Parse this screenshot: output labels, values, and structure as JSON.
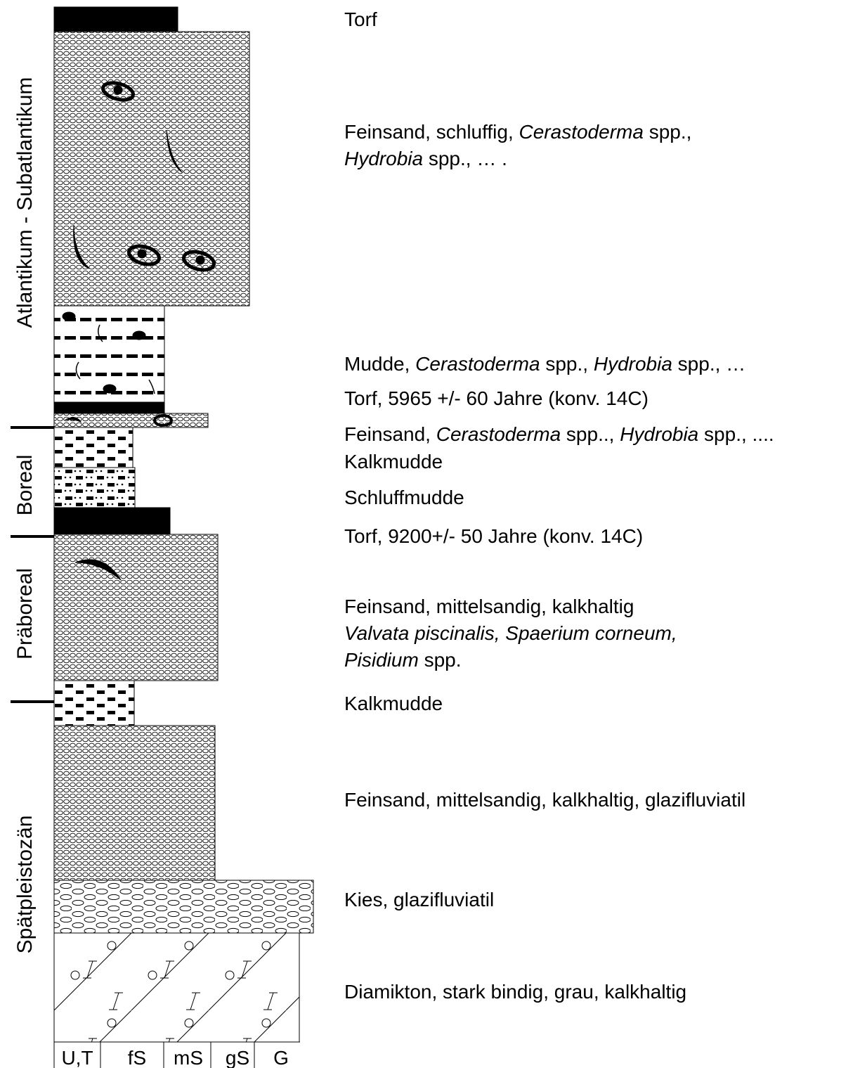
{
  "periods": [
    "Atlantikum - Subatlantikum",
    "Boreal",
    "Präboreal",
    "Spätpleistozän"
  ],
  "layers": [
    {
      "description": [
        [
          {
            "text": "Torf"
          }
        ]
      ]
    },
    {
      "description": [
        [
          {
            "text": "Feinsand, schluffig, "
          },
          {
            "text": "Cerastoderma",
            "italic": true
          },
          {
            "text": " spp.,"
          }
        ],
        [
          {
            "text": "Hydrobia",
            "italic": true
          },
          {
            "text": " spp., … ."
          }
        ]
      ]
    },
    {
      "description": [
        [
          {
            "text": "Mudde, "
          },
          {
            "text": "Cerastoderma",
            "italic": true
          },
          {
            "text": " spp., "
          },
          {
            "text": "Hydrobia",
            "italic": true
          },
          {
            "text": " spp., …"
          }
        ]
      ]
    },
    {
      "description": [
        [
          {
            "text": "Torf, 5965 +/- 60 Jahre (konv. 14C)"
          }
        ]
      ]
    },
    {
      "description": [
        [
          {
            "text": "Feinsand, "
          },
          {
            "text": "Cerastoderma",
            "italic": true
          },
          {
            "text": " spp.., "
          },
          {
            "text": "Hydrobia",
            "italic": true
          },
          {
            "text": " spp., ...."
          }
        ]
      ]
    },
    {
      "description": [
        [
          {
            "text": "Kalkmudde"
          }
        ]
      ]
    },
    {
      "description": [
        [
          {
            "text": "Schluffmudde"
          }
        ]
      ]
    },
    {
      "description": [
        [
          {
            "text": "Torf, 9200+/- 50 Jahre (konv. 14C)"
          }
        ]
      ]
    },
    {
      "description": [
        [
          {
            "text": "Feinsand, mittelsandig, kalkhaltig"
          }
        ],
        [
          {
            "text": "Valvata piscinalis, Spaerium corneum,",
            "italic": true
          }
        ],
        [
          {
            "text": "Pisidium",
            "italic": true
          },
          {
            "text": " spp."
          }
        ]
      ]
    },
    {
      "description": [
        [
          {
            "text": "Kalkmudde"
          }
        ]
      ]
    },
    {
      "description": [
        [
          {
            "text": "Feinsand, mittelsandig, kalkhaltig, glazifluviatil"
          }
        ]
      ]
    },
    {
      "description": [
        [
          {
            "text": "Kies, glazifluviatil"
          }
        ]
      ]
    },
    {
      "description": [
        [
          {
            "text": "Diamikton, stark bindig, grau, kalkhaltig"
          }
        ]
      ]
    }
  ],
  "grain_sizes": [
    "U,T",
    "fS",
    "mS",
    "gS",
    "G"
  ]
}
